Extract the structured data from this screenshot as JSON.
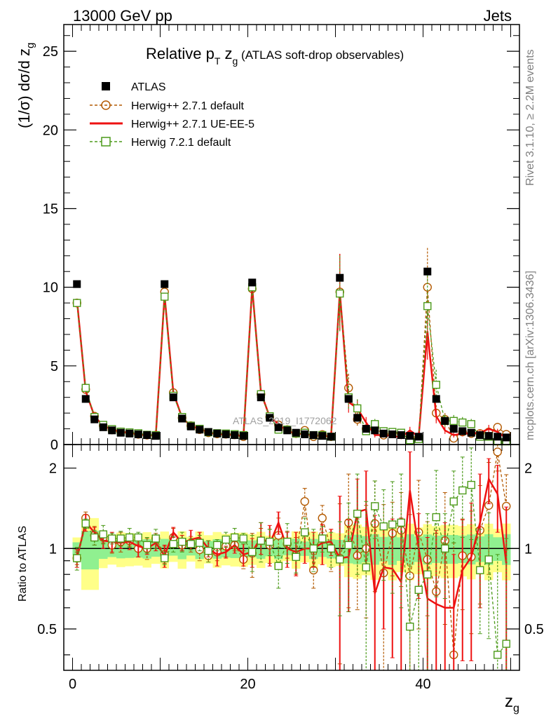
{
  "header": {
    "left": "13000 GeV pp",
    "right": "Jets"
  },
  "side_labels": {
    "rivet": "Rivet 3.1.10, ≥ 2.2M events",
    "mcplots": "mcplots.cern.ch [arXiv:1306.3436]"
  },
  "watermark": "ATLAS_2019_I1772062",
  "title": {
    "main_a": "Relative p",
    "main_sub_t": "T",
    "main_b": " z",
    "main_sub_g": "g",
    "paren": " (ATLAS soft-drop observables)"
  },
  "colors": {
    "data": "#000000",
    "herwigpp_default": "#b35900",
    "herwigpp_ueee5": "#ee1111",
    "herwig7": "#4c9a1a",
    "band_inner": "#90f090",
    "band_outer": "#ffff88"
  },
  "chart_data": {
    "type": "scatter",
    "xlabel": "z",
    "xlabel_sub": "g",
    "ylabel_top": "(1/σ) dσ/d z",
    "ylabel_top_sub": "g",
    "ylabel_bottom": "Ratio to ATLAS",
    "xlim": [
      -1,
      51
    ],
    "ylim_top": [
      0,
      26.7
    ],
    "ylim_bottom_log": [
      0.35,
      2.45
    ],
    "x_ticks": [
      0,
      20,
      40
    ],
    "y_ticks_top": [
      0,
      5,
      10,
      15,
      20,
      25
    ],
    "y_ticks_bottom": [
      0.5,
      1,
      2
    ],
    "legend_position": "top-left",
    "x": [
      0.5,
      1.5,
      2.5,
      3.5,
      4.5,
      5.5,
      6.5,
      7.5,
      8.5,
      9.5,
      10.5,
      11.5,
      12.5,
      13.5,
      14.5,
      15.5,
      16.5,
      17.5,
      18.5,
      19.5,
      20.5,
      21.5,
      22.5,
      23.5,
      24.5,
      25.5,
      26.5,
      27.5,
      28.5,
      29.5,
      30.5,
      31.5,
      32.5,
      33.5,
      34.5,
      35.5,
      36.5,
      37.5,
      38.5,
      39.5,
      40.5,
      41.5,
      42.5,
      43.5,
      44.5,
      45.5,
      46.5,
      47.5,
      48.5,
      49.5
    ],
    "series": [
      {
        "name": "ATLAS",
        "values": [
          10.2,
          2.9,
          1.6,
          1.1,
          0.9,
          0.75,
          0.7,
          0.65,
          0.6,
          0.55,
          10.2,
          3.0,
          1.65,
          1.15,
          0.95,
          0.8,
          0.7,
          0.65,
          0.6,
          0.55,
          10.3,
          3.0,
          1.7,
          1.1,
          0.9,
          0.75,
          0.65,
          0.6,
          0.55,
          0.5,
          10.6,
          2.9,
          1.7,
          1.0,
          0.9,
          0.7,
          0.65,
          0.6,
          0.55,
          0.5,
          11.0,
          2.9,
          1.5,
          1.0,
          0.85,
          0.75,
          0.6,
          0.55,
          0.5,
          0.45
        ]
      },
      {
        "name": "Herwig++ 2.7.1 default",
        "values": [
          9.0,
          3.5,
          1.8,
          1.2,
          0.93,
          0.8,
          0.75,
          0.65,
          0.6,
          0.6,
          9.7,
          3.3,
          1.7,
          1.2,
          0.95,
          0.75,
          0.68,
          0.66,
          0.62,
          0.5,
          9.9,
          3.2,
          1.75,
          1.25,
          0.95,
          0.7,
          0.9,
          0.5,
          0.64,
          0.5,
          9.7,
          3.6,
          1.6,
          1.0,
          1.1,
          0.6,
          0.75,
          0.7,
          0.45,
          0.45,
          10.0,
          2.0,
          1.6,
          0.4,
          0.8,
          0.7,
          0.7,
          0.8,
          1.1,
          0.65
        ]
      },
      {
        "name": "Herwig++ 2.7.1 UE-EE-5",
        "values": [
          9.2,
          3.4,
          1.8,
          1.2,
          0.95,
          0.8,
          0.75,
          0.65,
          0.6,
          0.58,
          9.5,
          3.3,
          1.7,
          1.2,
          0.97,
          0.8,
          0.66,
          0.63,
          0.62,
          0.52,
          10.0,
          3.3,
          1.75,
          1.3,
          0.85,
          0.72,
          0.65,
          0.6,
          0.55,
          0.52,
          9.7,
          2.7,
          2.3,
          1.4,
          0.6,
          0.6,
          0.55,
          0.45,
          0.9,
          0.5,
          7.2,
          1.8,
          0.9,
          0.6,
          0.7,
          0.7,
          0.75,
          1.0,
          0.8,
          0.4
        ]
      },
      {
        "name": "Herwig 7.2.1 default",
        "values": [
          9.0,
          3.6,
          1.75,
          1.25,
          0.98,
          0.82,
          0.77,
          0.72,
          0.62,
          0.6,
          9.4,
          3.1,
          1.75,
          1.2,
          1.0,
          0.78,
          0.72,
          0.7,
          0.66,
          0.6,
          10.0,
          3.2,
          1.8,
          0.95,
          0.95,
          0.7,
          0.75,
          0.6,
          0.6,
          0.5,
          9.6,
          3.0,
          2.3,
          0.85,
          1.3,
          0.85,
          0.8,
          0.75,
          0.28,
          0.35,
          8.8,
          3.8,
          1.5,
          1.5,
          1.4,
          1.3,
          0.5,
          0.5,
          0.2,
          0.2
        ]
      }
    ],
    "ratios": [
      {
        "name": "Herwig++ 2.7.1 default",
        "values": [
          0.92,
          1.3,
          1.12,
          1.1,
          1.03,
          1.06,
          1.07,
          1.0,
          1.0,
          1.09,
          0.95,
          1.1,
          1.03,
          1.04,
          0.99,
          0.94,
          0.97,
          1.02,
          1.03,
          0.91,
          0.96,
          1.07,
          1.03,
          1.12,
          1.04,
          0.95,
          1.5,
          0.83,
          1.3,
          1.0,
          0.92,
          1.25,
          0.94,
          1.0,
          1.24,
          0.81,
          1.14,
          1.17,
          0.79,
          1.15,
          0.91,
          0.69,
          1.07,
          0.4,
          0.94,
          0.93,
          1.17,
          1.45,
          2.3,
          1.44
        ]
      },
      {
        "name": "Herwig++ 2.7.1 UE-EE-5",
        "values": [
          0.92,
          1.25,
          1.15,
          1.07,
          1.06,
          1.05,
          1.06,
          1.02,
          1.0,
          1.05,
          0.94,
          1.15,
          1.05,
          1.08,
          1.1,
          1.0,
          0.95,
          0.97,
          1.03,
          0.95,
          0.97,
          1.1,
          1.04,
          1.25,
          1.0,
          0.97,
          1.0,
          1.0,
          1.05,
          1.06,
          0.92,
          0.93,
          1.37,
          1.4,
          0.68,
          0.85,
          0.84,
          0.75,
          1.65,
          1.0,
          0.65,
          0.62,
          0.6,
          0.6,
          0.83,
          0.93,
          1.25,
          1.82,
          1.6,
          0.88
        ]
      },
      {
        "name": "Herwig 7.2.1 default",
        "values": [
          0.92,
          1.24,
          1.1,
          1.13,
          1.09,
          1.09,
          1.1,
          1.1,
          1.03,
          1.09,
          0.92,
          1.04,
          1.06,
          1.04,
          1.05,
          0.98,
          1.03,
          1.08,
          1.1,
          1.09,
          0.97,
          1.07,
          1.06,
          0.86,
          1.06,
          0.93,
          1.15,
          1.0,
          1.09,
          1.0,
          0.91,
          1.03,
          1.35,
          0.85,
          1.44,
          1.21,
          1.23,
          1.25,
          0.51,
          0.7,
          0.8,
          1.31,
          1.0,
          1.5,
          1.65,
          1.73,
          0.83,
          0.91,
          0.4,
          0.44
        ]
      }
    ]
  },
  "legend": [
    {
      "label": "ATLAS"
    },
    {
      "label": "Herwig++ 2.7.1 default"
    },
    {
      "label": "Herwig++ 2.7.1 UE-EE-5"
    },
    {
      "label": "Herwig 7.2.1 default"
    }
  ]
}
